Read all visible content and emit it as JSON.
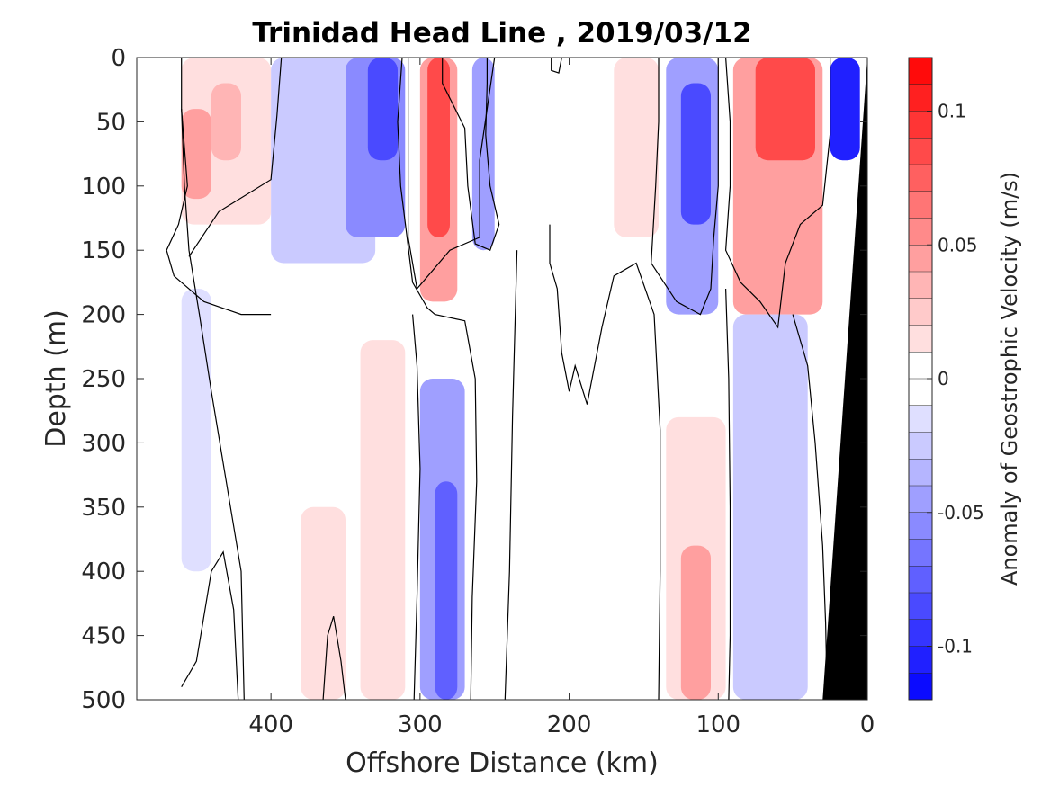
{
  "chart_data": {
    "type": "heatmap",
    "title": "Trinidad Head Line , 2019/03/12",
    "xlabel": "Offshore Distance (km)",
    "ylabel": "Depth (m)",
    "colorbar_label": "Anomaly of Geostrophic Velocity (m/s)",
    "xlim": [
      490,
      0
    ],
    "ylim": [
      500,
      0
    ],
    "x_reversed": true,
    "y_reversed": true,
    "x_ticks": [
      400,
      300,
      200,
      100,
      0
    ],
    "y_ticks": [
      0,
      50,
      100,
      150,
      200,
      250,
      300,
      350,
      400,
      450,
      500
    ],
    "colorbar_range": [
      -0.12,
      0.12
    ],
    "colorbar_ticks": [
      0.1,
      0.05,
      0,
      -0.05,
      -0.1
    ],
    "colorbar_tick_labels": [
      "0.1",
      "0.05",
      "0",
      "-0.05",
      "-0.1"
    ],
    "colorbar_levels": 24,
    "positive_color": "#ff0000",
    "negative_color": "#0000ff",
    "bathymetry_color": "#000000",
    "grid": false,
    "contour_zero_lines": [
      [
        [
          0,
          0
        ],
        [
          460,
          40
        ],
        [
          458,
          100
        ],
        [
          455,
          150
        ],
        [
          448,
          200
        ],
        [
          440,
          260
        ],
        [
          430,
          330
        ],
        [
          420,
          400
        ],
        [
          418,
          500
        ]
      ],
      [
        [
          0,
          0
        ],
        [
          455,
          155
        ],
        [
          435,
          120
        ],
        [
          400,
          95
        ],
        [
          396,
          45
        ],
        [
          393,
          0
        ]
      ],
      [
        [
          0,
          0
        ],
        [
          285,
          0
        ],
        [
          285,
          20
        ],
        [
          270,
          55
        ],
        [
          268,
          100
        ],
        [
          263,
          145
        ],
        [
          253,
          150
        ],
        [
          247,
          130
        ],
        [
          253,
          100
        ],
        [
          256,
          60
        ],
        [
          255,
          20
        ],
        [
          255,
          0
        ]
      ],
      [
        [
          0,
          0
        ],
        [
          460,
          0
        ],
        [
          460,
          40
        ],
        [
          456,
          100
        ],
        [
          462,
          130
        ],
        [
          470,
          150
        ],
        [
          465,
          170
        ],
        [
          445,
          190
        ],
        [
          420,
          200
        ],
        [
          400,
          200
        ]
      ],
      [
        [
          0,
          0
        ],
        [
          250,
          0
        ],
        [
          255,
          40
        ],
        [
          260,
          80
        ],
        [
          260,
          140
        ],
        [
          280,
          150
        ],
        [
          302,
          180
        ],
        [
          308,
          140
        ],
        [
          308,
          90
        ],
        [
          308,
          40
        ],
        [
          308,
          0
        ]
      ],
      [
        [
          0,
          0
        ],
        [
          312,
          0
        ],
        [
          315,
          50
        ],
        [
          313,
          100
        ],
        [
          305,
          175
        ],
        [
          295,
          195
        ],
        [
          290,
          200
        ],
        [
          270,
          205
        ],
        [
          263,
          250
        ],
        [
          262,
          330
        ],
        [
          265,
          420
        ],
        [
          266,
          500
        ]
      ],
      [
        [
          0,
          0
        ],
        [
          305,
          200
        ],
        [
          302,
          240
        ],
        [
          300,
          320
        ],
        [
          302,
          420
        ],
        [
          304,
          500
        ]
      ],
      [
        [
          0,
          0
        ],
        [
          235,
          150
        ],
        [
          238,
          280
        ],
        [
          240,
          400
        ],
        [
          243,
          500
        ]
      ],
      [
        [
          0,
          0
        ],
        [
          213,
          130
        ],
        [
          213,
          160
        ],
        [
          208,
          180
        ],
        [
          205,
          230
        ],
        [
          200,
          260
        ],
        [
          196,
          240
        ],
        [
          188,
          270
        ],
        [
          178,
          210
        ],
        [
          170,
          170
        ],
        [
          155,
          160
        ],
        [
          143,
          200
        ],
        [
          139,
          290
        ],
        [
          139,
          400
        ],
        [
          140,
          500
        ]
      ],
      [
        [
          0,
          0
        ],
        [
          140,
          0
        ],
        [
          140,
          50
        ],
        [
          142,
          100
        ],
        [
          145,
          160
        ],
        [
          128,
          190
        ],
        [
          112,
          200
        ],
        [
          105,
          180
        ],
        [
          103,
          140
        ],
        [
          100,
          100
        ],
        [
          100,
          50
        ],
        [
          100,
          0
        ]
      ],
      [
        [
          0,
          0
        ],
        [
          95,
          0
        ],
        [
          92,
          50
        ],
        [
          92,
          100
        ],
        [
          95,
          150
        ],
        [
          85,
          175
        ],
        [
          72,
          190
        ],
        [
          60,
          210
        ],
        [
          55,
          160
        ],
        [
          45,
          130
        ],
        [
          30,
          115
        ],
        [
          25,
          60
        ],
        [
          25,
          0
        ]
      ],
      [
        [
          0,
          0
        ],
        [
          95,
          180
        ],
        [
          93,
          250
        ],
        [
          92,
          350
        ],
        [
          92,
          450
        ],
        [
          93,
          500
        ]
      ],
      [
        [
          0,
          0
        ],
        [
          50,
          200
        ],
        [
          40,
          240
        ],
        [
          35,
          300
        ],
        [
          30,
          380
        ],
        [
          28,
          440
        ],
        [
          27,
          500
        ]
      ],
      [
        [
          0,
          0
        ],
        [
          460,
          490
        ],
        [
          450,
          470
        ],
        [
          440,
          400
        ],
        [
          432,
          385
        ],
        [
          425,
          430
        ],
        [
          422,
          500
        ]
      ],
      [
        [
          0,
          0
        ],
        [
          365,
          500
        ],
        [
          362,
          450
        ],
        [
          358,
          435
        ],
        [
          353,
          470
        ],
        [
          350,
          500
        ]
      ],
      [
        [
          0,
          0
        ],
        [
          212,
          0
        ],
        [
          212,
          10
        ],
        [
          207,
          12
        ],
        [
          205,
          0
        ]
      ]
    ],
    "anomaly_patches": [
      {
        "x": [
          460,
          400
        ],
        "depth": [
          0,
          130
        ],
        "value": 0.02
      },
      {
        "x": [
          460,
          440
        ],
        "depth": [
          40,
          110
        ],
        "value": 0.04
      },
      {
        "x": [
          440,
          420
        ],
        "depth": [
          20,
          80
        ],
        "value": 0.03
      },
      {
        "x": [
          400,
          330
        ],
        "depth": [
          0,
          160
        ],
        "value": -0.02
      },
      {
        "x": [
          350,
          310
        ],
        "depth": [
          0,
          140
        ],
        "value": -0.05
      },
      {
        "x": [
          335,
          315
        ],
        "depth": [
          0,
          80
        ],
        "value": -0.08
      },
      {
        "x": [
          300,
          275
        ],
        "depth": [
          0,
          190
        ],
        "value": 0.04
      },
      {
        "x": [
          295,
          280
        ],
        "depth": [
          0,
          140
        ],
        "value": 0.08
      },
      {
        "x": [
          265,
          250
        ],
        "depth": [
          0,
          150
        ],
        "value": -0.04
      },
      {
        "x": [
          170,
          140
        ],
        "depth": [
          0,
          140
        ],
        "value": 0.02
      },
      {
        "x": [
          135,
          100
        ],
        "depth": [
          0,
          200
        ],
        "value": -0.04
      },
      {
        "x": [
          125,
          105
        ],
        "depth": [
          20,
          130
        ],
        "value": -0.08
      },
      {
        "x": [
          90,
          30
        ],
        "depth": [
          0,
          200
        ],
        "value": 0.04
      },
      {
        "x": [
          75,
          35
        ],
        "depth": [
          0,
          80
        ],
        "value": 0.08
      },
      {
        "x": [
          25,
          5
        ],
        "depth": [
          0,
          80
        ],
        "value": -0.1
      },
      {
        "x": [
          460,
          440
        ],
        "depth": [
          180,
          400
        ],
        "value": -0.015
      },
      {
        "x": [
          340,
          310
        ],
        "depth": [
          220,
          500
        ],
        "value": 0.02
      },
      {
        "x": [
          300,
          270
        ],
        "depth": [
          250,
          500
        ],
        "value": -0.04
      },
      {
        "x": [
          290,
          275
        ],
        "depth": [
          330,
          500
        ],
        "value": -0.07
      },
      {
        "x": [
          135,
          95
        ],
        "depth": [
          280,
          500
        ],
        "value": 0.02
      },
      {
        "x": [
          125,
          105
        ],
        "depth": [
          380,
          500
        ],
        "value": 0.05
      },
      {
        "x": [
          90,
          40
        ],
        "depth": [
          200,
          500
        ],
        "value": -0.02
      },
      {
        "x": [
          380,
          350
        ],
        "depth": [
          350,
          500
        ],
        "value": 0.015
      },
      {
        "x": [
          240,
          210
        ],
        "depth": [
          410,
          500
        ],
        "value": -0.01
      }
    ],
    "bathymetry": [
      [
        0,
        0
      ],
      [
        0,
        500
      ],
      [
        30,
        500
      ]
    ]
  }
}
